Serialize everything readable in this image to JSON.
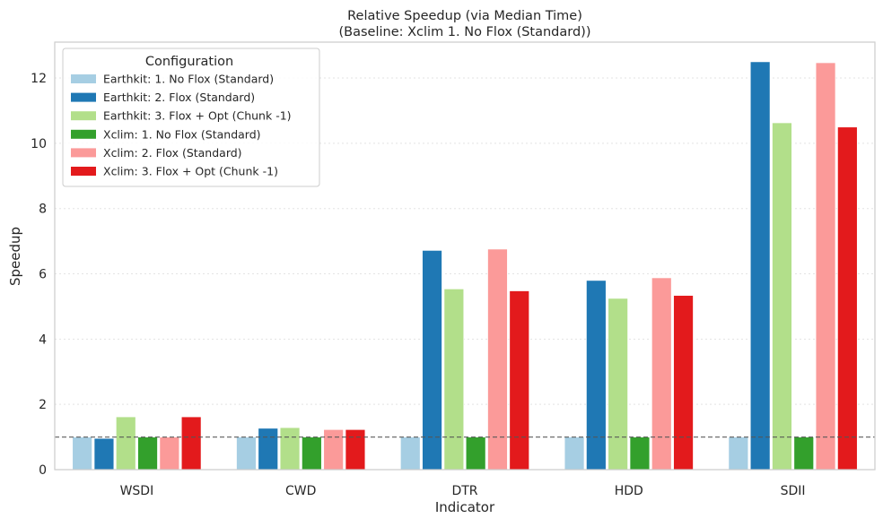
{
  "chart_data": {
    "type": "bar",
    "title": "Relative Speedup (via Median Time)",
    "subtitle": "(Baseline: Xclim 1. No Flox (Standard))",
    "xlabel": "Indicator",
    "ylabel": "Speedup",
    "ylim": [
      0,
      13.1
    ],
    "yticks": [
      0,
      2,
      4,
      6,
      8,
      10,
      12
    ],
    "grid": "horizontal dotted",
    "reference_line": 1,
    "categories": [
      "WSDI",
      "CWD",
      "DTR",
      "HDD",
      "SDII"
    ],
    "legend": {
      "title": "Configuration",
      "placement": "top-left"
    },
    "series": [
      {
        "name": "Earthkit: 1. No Flox (Standard)",
        "color": "#a6cee3",
        "values": [
          1.0,
          1.0,
          1.0,
          1.0,
          1.0
        ]
      },
      {
        "name": "Earthkit: 2. Flox (Standard)",
        "color": "#1f78b4",
        "values": [
          0.96,
          1.27,
          6.72,
          5.8,
          12.5
        ]
      },
      {
        "name": "Earthkit: 3. Flox + Opt (Chunk -1)",
        "color": "#b2df8a",
        "values": [
          1.62,
          1.29,
          5.54,
          5.25,
          10.63
        ]
      },
      {
        "name": "Xclim: 1. No Flox (Standard)",
        "color": "#33a02c",
        "values": [
          1.0,
          1.0,
          1.0,
          1.0,
          1.0
        ]
      },
      {
        "name": "Xclim: 2. Flox (Standard)",
        "color": "#fb9a99",
        "values": [
          1.0,
          1.23,
          6.76,
          5.88,
          12.47
        ]
      },
      {
        "name": "Xclim: 3. Flox + Opt (Chunk -1)",
        "color": "#e31a1c",
        "values": [
          1.62,
          1.23,
          5.48,
          5.34,
          10.5
        ]
      }
    ]
  }
}
